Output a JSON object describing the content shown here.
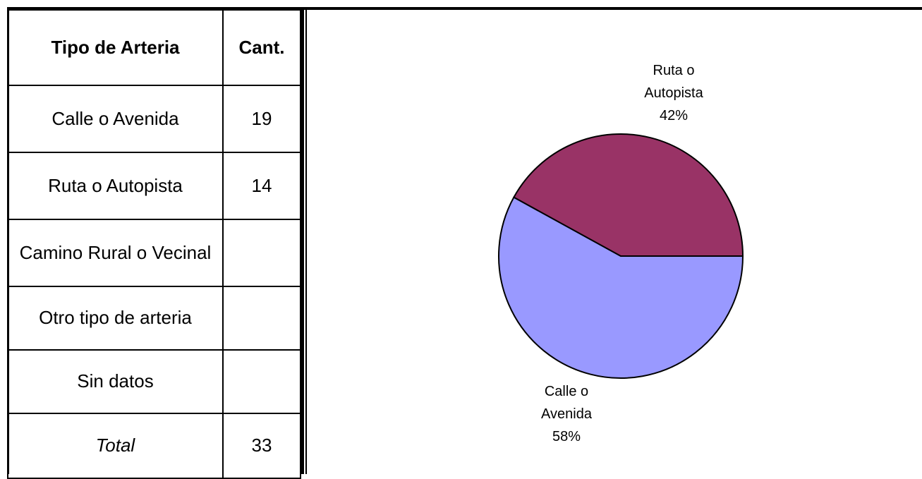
{
  "table": {
    "header": [
      "Tipo de Arteria",
      "Cant."
    ],
    "rows": [
      [
        "Calle o Avenida",
        19
      ],
      [
        "Ruta o Autopista",
        14
      ],
      [
        "Camino Rural o Vecinal",
        null
      ],
      [
        "Otro tipo de arteria",
        null
      ],
      [
        "Sin datos",
        null
      ],
      [
        "Total",
        33
      ]
    ]
  },
  "chart_data": {
    "type": "pie",
    "categories": [
      "Calle o Avenida",
      "Ruta o Autopista"
    ],
    "values": [
      58,
      42
    ],
    "value_labels": [
      "58%",
      "42%"
    ],
    "colors": [
      "#9999ff",
      "#993366"
    ]
  }
}
